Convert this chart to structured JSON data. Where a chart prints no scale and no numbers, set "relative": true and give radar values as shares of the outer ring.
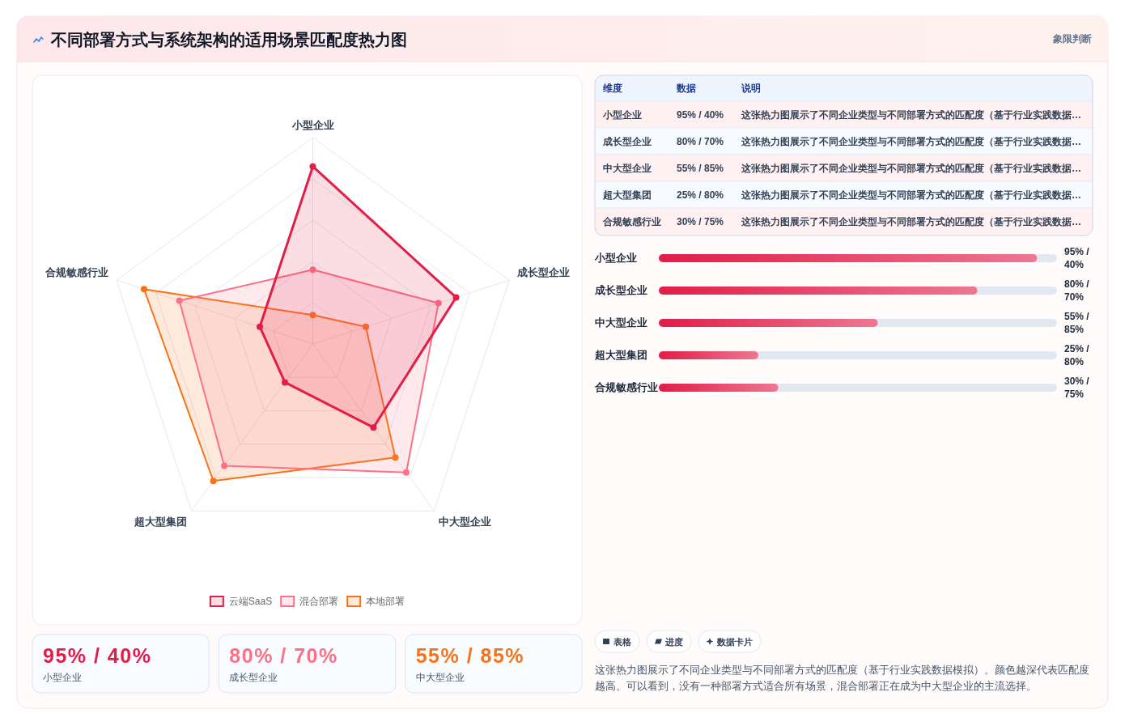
{
  "chart_data": [
    {
      "type": "radar",
      "title": "不同部署方式与系统架构的适用场景匹配度热力图",
      "annotations": [
        "象限判断"
      ],
      "categories": [
        "小型企业",
        "成长型企业",
        "中大型企业",
        "超大型集团",
        "合规敏感行业"
      ],
      "relative": true,
      "grid": true,
      "legend": "bottom",
      "marker": "circle",
      "series": [
        {
          "name": "云端SaaS",
          "color": "#e11d48",
          "values": [
            0.86,
            0.73,
            0.5,
            0.23,
            0.27
          ]
        },
        {
          "name": "混合部署",
          "color": "#fb7185",
          "values": [
            0.36,
            0.64,
            0.77,
            0.73,
            0.68
          ]
        },
        {
          "name": "本地部署",
          "color": "#f97316",
          "values": [
            0.14,
            0.27,
            0.68,
            0.82,
            0.86
          ]
        }
      ]
    },
    {
      "type": "other",
      "annotations": [
        "维度",
        "数据",
        "说明",
        "小型企业",
        "95% / 40%",
        "这张热力图展示了不同企业类型与不同部署方式的匹配度（基于行业实践数据…",
        "成长型企业",
        "80% / 70%",
        "这张热力图展示了不同企业类型与不同部署方式的匹配度（基于行业实践数据…",
        "中大型企业",
        "55% / 85%",
        "这张热力图展示了不同企业类型与不同部署方式的匹配度（基于行业实践数据…",
        "超大型集团",
        "25% / 80%",
        "这张热力图展示了不同企业类型与不同部署方式的匹配度（基于行业实践数据…",
        "合规敏感行业",
        "30% / 75%",
        "这张热力图展示了不同企业类型与不同部署方式的匹配度（基于行业实践数据…"
      ]
    },
    {
      "type": "bar",
      "orientation": "horizontal",
      "categories": [
        "小型企业",
        "成长型企业",
        "中大型企业",
        "超大型集团",
        "合规敏感行业"
      ],
      "values": [
        95,
        80,
        55,
        25,
        30
      ],
      "value_labels": [
        "95% / 40%",
        "80% / 70%",
        "55% / 85%",
        "25% / 80%",
        "30% / 75%"
      ],
      "color": "#e11d48",
      "xlim": [
        0,
        100
      ]
    },
    {
      "type": "other",
      "annotations": [
        "95% / 40%",
        "小型企业",
        "80% / 70%",
        "成长型企业",
        "55% / 85%",
        "中大型企业"
      ]
    },
    {
      "type": "other",
      "annotations": [
        "表格",
        "进度",
        "数据卡片",
        "这张热力图展示了不同企业类型与不同部署方式的匹配度（基于行业实践数据模拟）。颜色越深代表匹配度越高。可以看到，没有一种部署方式适合所有场景，混合部署正在成为中大型企业的主流选择。"
      ]
    }
  ]
}
